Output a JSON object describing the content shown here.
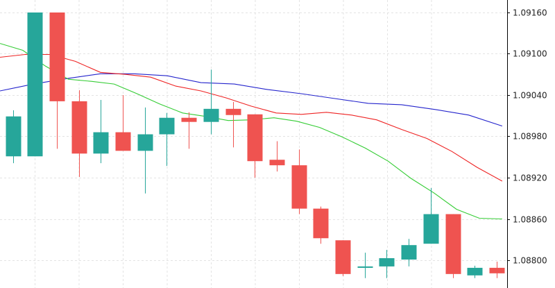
{
  "chart_data": {
    "type": "candlestick",
    "title": "",
    "xlabel": "",
    "ylabel": "",
    "ylim": [
      1.08774,
      1.09185
    ],
    "grid": true,
    "y_ticks": [
      "1.09160",
      "1.09100",
      "1.09040",
      "1.08980",
      "1.08920",
      "1.08860",
      "1.08800"
    ],
    "y_tick_values": [
      1.0916,
      1.091,
      1.0904,
      1.0898,
      1.0892,
      1.0886,
      1.088
    ],
    "colors": {
      "bull": "#26a69a",
      "bear": "#ef5350",
      "ma_fast": "#33cc33",
      "ma_mid": "#ee2222",
      "ma_slow": "#2222cc",
      "grid": "#e3e3e3"
    },
    "candles": [
      {
        "o": 1.08951,
        "h": 1.09018,
        "l": 1.08941,
        "c": 1.09009
      },
      {
        "o": 1.08951,
        "h": 1.0916,
        "l": 1.08951,
        "c": 1.0916
      },
      {
        "o": 1.0916,
        "h": 1.0916,
        "l": 1.08962,
        "c": 1.09031
      },
      {
        "o": 1.09031,
        "h": 1.09047,
        "l": 1.08921,
        "c": 1.08955
      },
      {
        "o": 1.08955,
        "h": 1.09033,
        "l": 1.08941,
        "c": 1.08986
      },
      {
        "o": 1.08986,
        "h": 1.0904,
        "l": 1.08959,
        "c": 1.08959
      },
      {
        "o": 1.08959,
        "h": 1.09022,
        "l": 1.08897,
        "c": 1.08983
      },
      {
        "o": 1.08983,
        "h": 1.09014,
        "l": 1.08937,
        "c": 1.09007
      },
      {
        "o": 1.09007,
        "h": 1.09015,
        "l": 1.08962,
        "c": 1.09001
      },
      {
        "o": 1.09001,
        "h": 1.09077,
        "l": 1.08983,
        "c": 1.0902
      },
      {
        "o": 1.0902,
        "h": 1.0903,
        "l": 1.08964,
        "c": 1.09011
      },
      {
        "o": 1.09012,
        "h": 1.09012,
        "l": 1.0892,
        "c": 1.08944
      },
      {
        "o": 1.08946,
        "h": 1.08973,
        "l": 1.08929,
        "c": 1.08938
      },
      {
        "o": 1.08938,
        "h": 1.08961,
        "l": 1.08867,
        "c": 1.08875
      },
      {
        "o": 1.08875,
        "h": 1.08878,
        "l": 1.08824,
        "c": 1.08832
      },
      {
        "o": 1.08829,
        "h": 1.08829,
        "l": 1.08777,
        "c": 1.0878
      },
      {
        "o": 1.08789,
        "h": 1.08811,
        "l": 1.08774,
        "c": 1.08791
      },
      {
        "o": 1.08791,
        "h": 1.08815,
        "l": 1.08774,
        "c": 1.08803
      },
      {
        "o": 1.08801,
        "h": 1.08831,
        "l": 1.08791,
        "c": 1.08822
      },
      {
        "o": 1.08824,
        "h": 1.08905,
        "l": 1.08824,
        "c": 1.08867
      },
      {
        "o": 1.08867,
        "h": 1.08867,
        "l": 1.08774,
        "c": 1.0878
      },
      {
        "o": 1.08778,
        "h": 1.08792,
        "l": 1.08774,
        "c": 1.08789
      },
      {
        "o": 1.08789,
        "h": 1.08798,
        "l": 1.08774,
        "c": 1.08781
      }
    ],
    "ma_fast": [
      1.09115,
      1.09105,
      1.09082,
      1.09063,
      1.0906,
      1.09056,
      1.09042,
      1.09027,
      1.09014,
      1.09009,
      1.09003,
      1.09004,
      1.09007,
      1.09002,
      1.08993,
      1.08979,
      1.08963,
      1.08944,
      1.08919,
      1.08898,
      1.08874,
      1.08861,
      1.0886
    ],
    "ma_mid": [
      1.09095,
      1.09099,
      1.09099,
      1.09089,
      1.09073,
      1.0907,
      1.09066,
      1.09053,
      1.09046,
      1.09036,
      1.09024,
      1.09014,
      1.09012,
      1.09015,
      1.09011,
      1.09004,
      1.0899,
      1.08977,
      1.08958,
      1.08935,
      1.08915
    ],
    "ma_slow": [
      1.09046,
      1.09056,
      1.09064,
      1.09071,
      1.09071,
      1.09068,
      1.09058,
      1.09056,
      1.09048,
      1.09042,
      1.09035,
      1.09028,
      1.09026,
      1.09019,
      1.09011,
      1.08995
    ]
  }
}
